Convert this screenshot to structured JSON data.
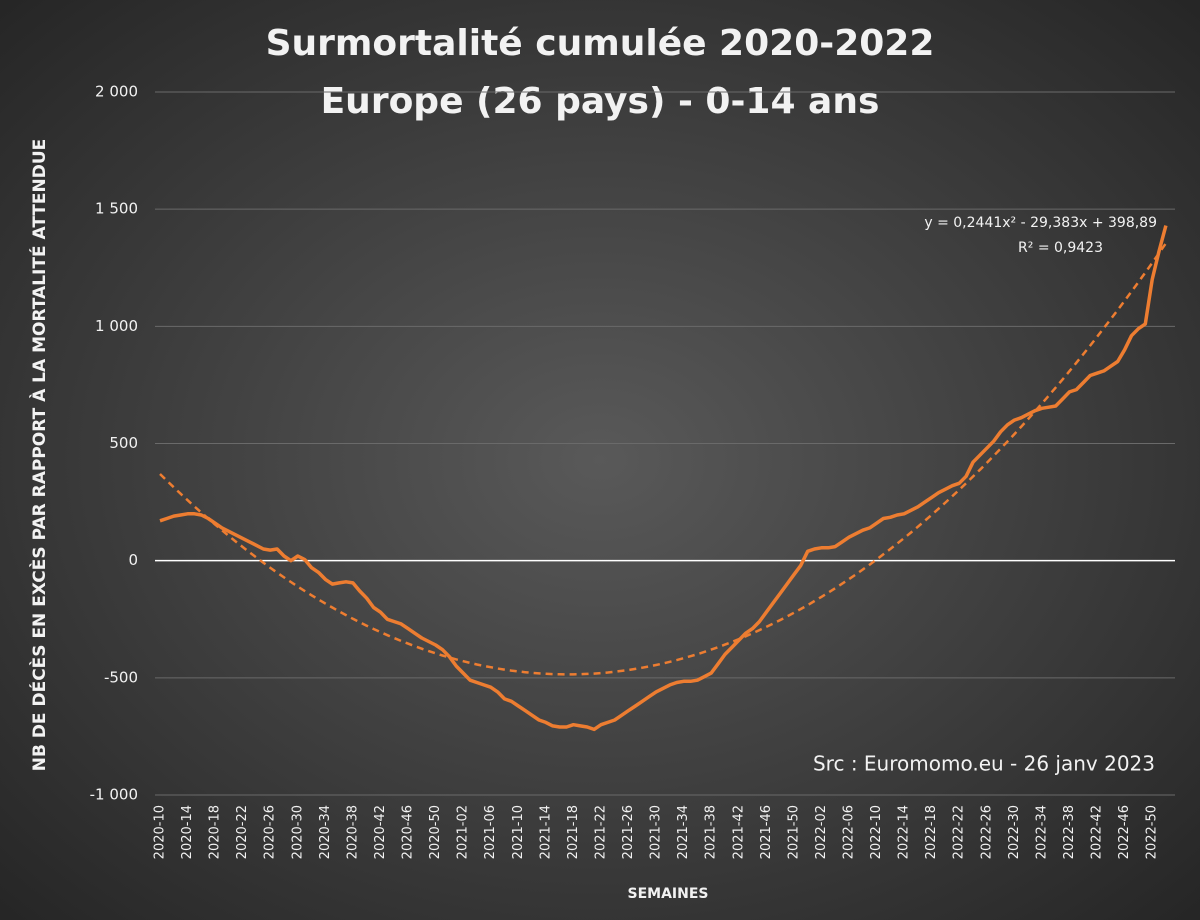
{
  "chart_data": {
    "type": "line",
    "title": [
      "Surmortalité cumulée 2020-2022",
      "Europe (26 pays) - 0-14 ans"
    ],
    "y_label": "NB DE DÉCÈS EN EXCÈS PAR RAPPORT À LA MORTALITÉ ATTENDUE",
    "x_label": "SEMAINES",
    "annotation": "Src : Euromomo.eu  - 26 janv 2023",
    "ylim": [
      -1000,
      2000
    ],
    "yticks": [
      {
        "value": -1000,
        "label": "-1 000"
      },
      -500,
      0,
      500,
      {
        "value": 1000,
        "label": "1 000"
      },
      {
        "value": 1500,
        "label": "1 500"
      },
      {
        "value": 2000,
        "label": "2 000"
      }
    ],
    "grid": true,
    "categories": [
      "2020-10",
      null,
      null,
      null,
      "2020-14",
      null,
      null,
      null,
      "2020-18",
      null,
      null,
      null,
      "2020-22",
      null,
      null,
      null,
      "2020-26",
      null,
      null,
      null,
      "2020-30",
      null,
      null,
      null,
      "2020-34",
      null,
      null,
      null,
      "2020-38",
      null,
      null,
      null,
      "2020-42",
      null,
      null,
      null,
      "2020-46",
      null,
      null,
      null,
      "2020-50",
      null,
      null,
      null,
      "2021-02",
      null,
      null,
      null,
      "2021-06",
      null,
      null,
      null,
      "2021-10",
      null,
      null,
      null,
      "2021-14",
      null,
      null,
      null,
      "2021-18",
      null,
      null,
      null,
      "2021-22",
      null,
      null,
      null,
      "2021-26",
      null,
      null,
      null,
      "2021-30",
      null,
      null,
      null,
      "2021-34",
      null,
      null,
      null,
      "2021-38",
      null,
      null,
      null,
      "2021-42",
      null,
      null,
      null,
      "2021-46",
      null,
      null,
      null,
      "2021-50",
      null,
      null,
      null,
      "2022-02",
      null,
      null,
      null,
      "2022-06",
      null,
      null,
      null,
      "2022-10",
      null,
      null,
      null,
      "2022-14",
      null,
      null,
      null,
      "2022-18",
      null,
      null,
      null,
      "2022-22",
      null,
      null,
      null,
      "2022-26",
      null,
      null,
      null,
      "2022-30",
      null,
      null,
      null,
      "2022-34",
      null,
      null,
      null,
      "2022-38",
      null,
      null,
      null,
      "2022-42",
      null,
      null,
      null,
      "2022-46",
      null,
      null,
      null,
      "2022-50",
      null,
      null
    ],
    "series": [
      {
        "color": "#ed7d31",
        "values": [
          170,
          180,
          190,
          195,
          200,
          200,
          195,
          180,
          160,
          140,
          125,
          110,
          95,
          80,
          65,
          50,
          45,
          50,
          20,
          0,
          20,
          5,
          -30,
          -50,
          -80,
          -100,
          -95,
          -90,
          -95,
          -130,
          -160,
          -200,
          -220,
          -250,
          -260,
          -270,
          -290,
          -310,
          -330,
          -345,
          -360,
          -380,
          -410,
          -450,
          -480,
          -510,
          -520,
          -530,
          -540,
          -560,
          -590,
          -600,
          -620,
          -640,
          -660,
          -680,
          -690,
          -705,
          -710,
          -710,
          -700,
          -705,
          -710,
          -720,
          -700,
          -690,
          -680,
          -660,
          -640,
          -620,
          -600,
          -580,
          -560,
          -545,
          -530,
          -520,
          -515,
          -515,
          -510,
          -495,
          -480,
          -440,
          -400,
          -370,
          -340,
          -310,
          -290,
          -260,
          -220,
          -180,
          -140,
          -100,
          -60,
          -20,
          40,
          50,
          55,
          55,
          60,
          80,
          100,
          115,
          130,
          140,
          160,
          180,
          185,
          195,
          200,
          215,
          230,
          250,
          270,
          290,
          305,
          320,
          330,
          360,
          420,
          450,
          480,
          510,
          550,
          580,
          600,
          610,
          625,
          640,
          650,
          655,
          660,
          690,
          720,
          730,
          760,
          790,
          800,
          810,
          830,
          850,
          900,
          960,
          990,
          1010,
          1200,
          1320,
          1430
        ]
      }
    ],
    "trendline": {
      "color": "#ed7d31",
      "coefficients": [
        0.2441,
        -29.383,
        398.89
      ],
      "equation": "y = 0,2441x² - 29,383x + 398,89",
      "r2": "R² = 0,9423"
    }
  }
}
